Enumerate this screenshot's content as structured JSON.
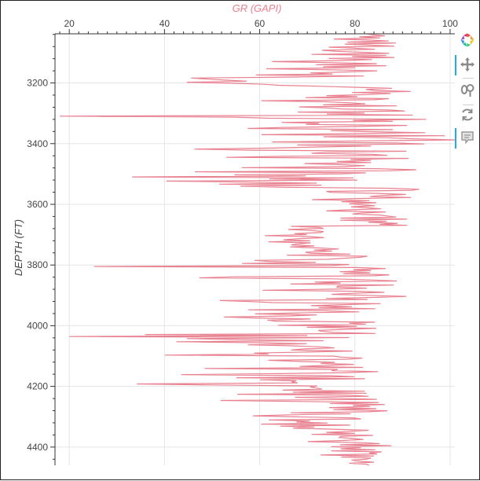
{
  "chart_data": {
    "type": "line",
    "title": "",
    "xlabel": "GR (GAPI)",
    "ylabel": "DEPTH (FT)",
    "xlim": [
      17,
      101
    ],
    "ylim": [
      4460,
      3038
    ],
    "y_inverted": true,
    "x_ticks": [
      20,
      40,
      60,
      80,
      100
    ],
    "y_ticks": [
      3200,
      3400,
      3600,
      3800,
      4000,
      4200,
      4400
    ],
    "grid": true,
    "line_color": "#e8808f",
    "series": [
      {
        "x_values": [
          82.5,
          84.0,
          86.3,
          80.9,
          85.3,
          75.6,
          83.0,
          87.1,
          78.4,
          88.6,
          77.9,
          83.1,
          88.3,
          74.5,
          79.9,
          84.2,
          73.1,
          76.0,
          81.9,
          87.2,
          70.9,
          86.6,
          79.4,
          88.3,
          74.5,
          83.6,
          76.7,
          62.6,
          74.8,
          84.6,
          71.8,
          86.6,
          73.3,
          80.1,
          61.4,
          76.0,
          84.7,
          78.4,
          70.6,
          75.3,
          59.2,
          81.9,
          67.9,
          45.6,
          49.3,
          53.1,
          57.3,
          44.7,
          54.0,
          60.9,
          64.0,
          73.2,
          80.5,
          87.8,
          82.3,
          84.1,
          91.7,
          79.4,
          87.5,
          82.9,
          74.0,
          80.5,
          69.6,
          87.1,
          84.1,
          60.3,
          74.0,
          79.1,
          82.2,
          73.3,
          88.8,
          68.3,
          73.9,
          77.2,
          87.6,
          90.5,
          68.0,
          82.0,
          74.1,
          92.1,
          18.0,
          55.0,
          61.8,
          95.0,
          79.6,
          88.0,
          64.6,
          72.5,
          69.7,
          91.0,
          80.3,
          64.4,
          57.5,
          88.0,
          74.9,
          82.9,
          94.8,
          77.3,
          60.4,
          98.9,
          73.4,
          86.9,
          92.1,
          101.0,
          80.1,
          62.6,
          88.8,
          94.6,
          67.9,
          83.4,
          71.3,
          62.8,
          46.3,
          58.3,
          90.8,
          74.4,
          70.9,
          83.4,
          86.8,
          64.9,
          53.0,
          91.3,
          79.1,
          83.4,
          76.2,
          83.4,
          69.4,
          76.4,
          82.1,
          77.8,
          56.2,
          84.5,
          92.9,
          86.8,
          46.4,
          82.3,
          77.3,
          54.7,
          69.7,
          33.2,
          79.7,
          62.0,
          80.5,
          40.4,
          57.0,
          72.0,
          51.5,
          73.0,
          55.9,
          63.8,
          86.8,
          93.5,
          92.0,
          74.0,
          75.0,
          84.9,
          90.7,
          85.6,
          83.2,
          91.8,
          80.3,
          71.0,
          83.1,
          77.2,
          84.5,
          78.8,
          81.4,
          84.2,
          79.2,
          82.7,
          85.5,
          78.0,
          74.0,
          86.5,
          81.3,
          79.5,
          85.4,
          86.8,
          88.7,
          77.0,
          91.0,
          76.9,
          86.7,
          82.8,
          89.0,
          85.2,
          91.0,
          66.6,
          72.5,
          73.4,
          66.0,
          70.8,
          73.4,
          72.9,
          67.3,
          69.9,
          61.1,
          70.7,
          73.5,
          68.1,
          65.0,
          70.6,
          61.8,
          70.7,
          68.0,
          66.6,
          71.5,
          66.4,
          72.5,
          76.6,
          71.4,
          75.2,
          69.6,
          70.5,
          79.0,
          65.7,
          82.6,
          81.2,
          77.7,
          74.3,
          58.9,
          61.9,
          71.8,
          56.3,
          78.8,
          75.0,
          25.2,
          80.5,
          86.5,
          79.7,
          83.4,
          76.8,
          83.2,
          77.5,
          87.2,
          84.1,
          54.7,
          47.3,
          75.6,
          83.2,
          88.8,
          71.6,
          77.0,
          66.5,
          88.2,
          76.4,
          76.2,
          82.5,
          75.7,
          60.6,
          80.4,
          86.2,
          79.5,
          75.1,
          82.8,
          90.8,
          84.5,
          73.9,
          82.7,
          51.6,
          58.1,
          62.7,
          85.4,
          77.6,
          70.8,
          79.4,
          72.4,
          84.3,
          57.6,
          74.0,
          80.9,
          68.1,
          59.0,
          72.0,
          66.4,
          52.5,
          59.3,
          70.7,
          61.6,
          63.4,
          84.2,
          78.8,
          82.3,
          63.9,
          80.4,
          69.9,
          84.5,
          78.4,
          72.3,
          73.1,
          75.5,
          84.3,
          35.9,
          70.0,
          20.0,
          78.8,
          44.7,
          55.8,
          73.4,
          42.5,
          59.9,
          69.9,
          57.5,
          66.7,
          73.0,
          75.7,
          69.4,
          66.6,
          79.5,
          69.9,
          58.8,
          61.9,
          40.1,
          75.6,
          77.1,
          81.6,
          78.5,
          61.8,
          67.4,
          75.8,
          72.8,
          79.8,
          73.6,
          68.4,
          81.7,
          48.4,
          76.4,
          75.1,
          84.9,
          78.2,
          64.3,
          43.5,
          75.0,
          79.9,
          55.1,
          82.1,
          60.1,
          67.7,
          66.7,
          68.0,
          34.2,
          49.9,
          72.1,
          70.6,
          71.8,
          73.1,
          64.8,
          82.1,
          67.0,
          82.5,
          55.3,
          78.6,
          82.9,
          67.4,
          76.3,
          84.6,
          51.8,
          68.2,
          85.0,
          74.8,
          86.3,
          79.6,
          83.2,
          74.6,
          84.5,
          75.5,
          86.8,
          82.8,
          66.5,
          79.1,
          66.2,
          58.6,
          68.1,
          79.6,
          81.3,
          61.9,
          70.6,
          67.7,
          74.3,
          60.3,
          79.0,
          64.3,
          71.5,
          67.0,
          75.4,
          82.9,
          79.0,
          74.0,
          80.0,
          70.9,
          83.8,
          77.0,
          76.7,
          79.6,
          81.8,
          76.9,
          70.1,
          81.6,
          85.2,
          76.9,
          87.7,
          75.0,
          81.3,
          77.0,
          84.3,
          75.0,
          85.6,
          83.0,
          84.7,
          72.8,
          84.0,
          77.1,
          83.4,
          82.5,
          79.3,
          80.9,
          84.0,
          78.8,
          82.4,
          83.0
        ]
      }
    ]
  }
}
